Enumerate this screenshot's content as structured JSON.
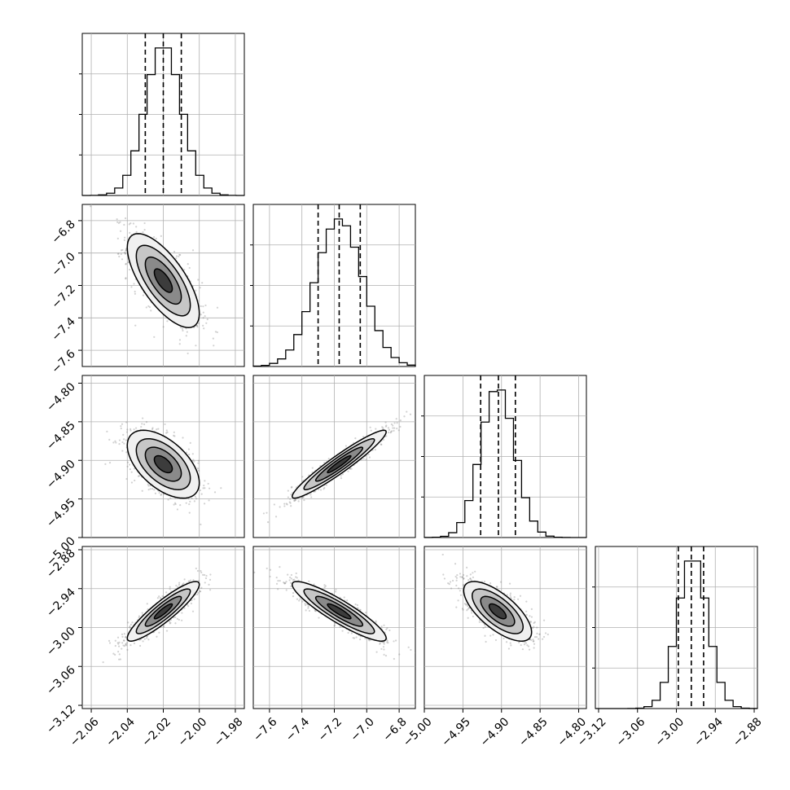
{
  "chart_data": {
    "type": "corner",
    "grid": true,
    "ink_color": "#000000",
    "sample_color": "#7f7f7f",
    "parameters": [
      {
        "center": -2.02,
        "sigma": 0.01,
        "quantiles": [
          -2.03,
          -2.02,
          -2.01
        ],
        "range": [
          -2.065,
          -1.975
        ],
        "ticks": [
          -2.06,
          -2.04,
          -2.02,
          -2.0,
          -1.98
        ],
        "tick_labels": [
          "−2.06",
          "−2.04",
          "−2.02",
          "−2.00",
          "−1.98"
        ]
      },
      {
        "center": -7.17,
        "sigma": 0.145,
        "quantiles": [
          -7.3,
          -7.17,
          -7.04
        ],
        "range": [
          -7.7,
          -6.7
        ],
        "ticks": [
          -7.6,
          -7.4,
          -7.2,
          -7.0,
          -6.8
        ],
        "tick_labels": [
          "−7.6",
          "−7.4",
          "−7.2",
          "−7.0",
          "−6.8"
        ]
      },
      {
        "center": -4.905,
        "sigma": 0.022,
        "quantiles": [
          -4.927,
          -4.904,
          -4.882
        ],
        "range": [
          -5.0,
          -4.79
        ],
        "ticks": [
          -5.0,
          -4.95,
          -4.9,
          -4.85,
          -4.8
        ],
        "tick_labels": [
          "−5.00",
          "−4.95",
          "−4.90",
          "−4.85",
          "−4.80"
        ]
      },
      {
        "center": -2.975,
        "sigma": 0.023,
        "quantiles": [
          -2.997,
          -2.977,
          -2.958
        ],
        "range": [
          -3.125,
          -2.875
        ],
        "ticks": [
          -3.12,
          -3.06,
          -3.0,
          -2.94,
          -2.88
        ],
        "tick_labels": [
          "−3.12",
          "−3.06",
          "−3.00",
          "−2.94",
          "−2.88"
        ]
      }
    ],
    "correlations": [
      {
        "row": 1,
        "col": 0,
        "rho": -0.7
      },
      {
        "row": 2,
        "col": 0,
        "rho": -0.55
      },
      {
        "row": 2,
        "col": 1,
        "rho": 0.95
      },
      {
        "row": 3,
        "col": 0,
        "rho": 0.9
      },
      {
        "row": 3,
        "col": 1,
        "rho": -0.9
      },
      {
        "row": 3,
        "col": 2,
        "rho": -0.7
      }
    ],
    "contour_levels_sigma": [
      0.5,
      1.0,
      1.5,
      2.0
    ],
    "histogram_bins": 20
  }
}
